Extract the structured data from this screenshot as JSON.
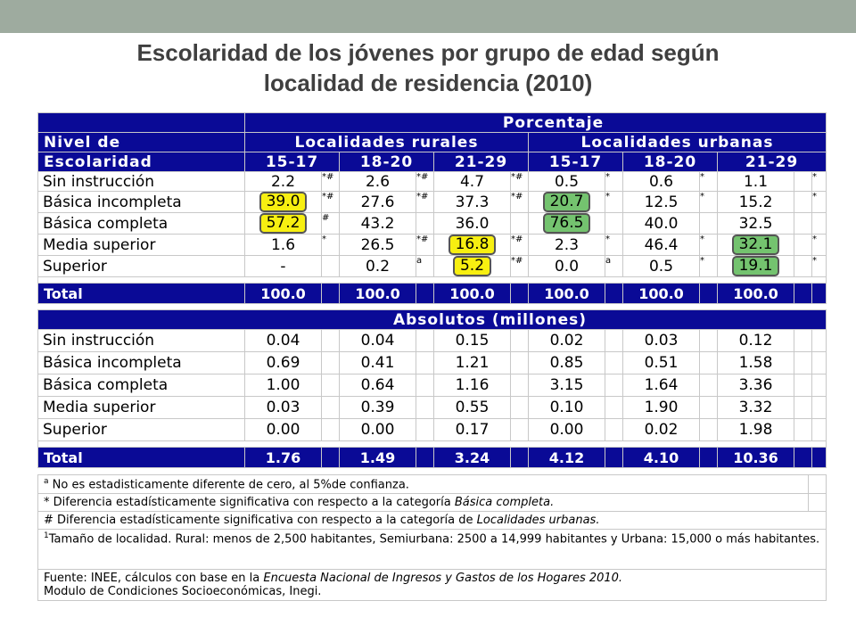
{
  "title": {
    "line1": "Escolaridad de los jóvenes por grupo de edad según",
    "line2": "localidad de residencia  (2010)"
  },
  "header": {
    "porcentaje": "Porcentaje",
    "nivel_de": "Nivel de",
    "escolaridad": "Escolaridad",
    "rurales": "Localidades rurales",
    "urbanas": "Localidades urbanas",
    "ages": [
      "15-17",
      "18-20",
      "21-29",
      "15-17",
      "18-20",
      "21-29"
    ]
  },
  "porcentaje_rows": [
    {
      "label": "Sin instrucción",
      "cells": [
        {
          "v": "2.2",
          "m": "*#"
        },
        {
          "v": "2.6",
          "m": "*#"
        },
        {
          "v": "4.7",
          "m": "*#"
        },
        {
          "v": "0.5",
          "m": "*"
        },
        {
          "v": "0.6",
          "m": "*"
        },
        {
          "v": "1.1",
          "m": "*"
        }
      ]
    },
    {
      "label": "Básica incompleta",
      "cells": [
        {
          "v": "39.0",
          "m": "*#"
        },
        {
          "v": "27.6",
          "m": "*#"
        },
        {
          "v": "37.3",
          "m": "*#"
        },
        {
          "v": "20.7",
          "m": "*"
        },
        {
          "v": "12.5",
          "m": "*"
        },
        {
          "v": "15.2",
          "m": "*"
        }
      ]
    },
    {
      "label": "Básica completa",
      "cells": [
        {
          "v": "57.2",
          "m": "#"
        },
        {
          "v": "43.2",
          "m": ""
        },
        {
          "v": "36.0",
          "m": ""
        },
        {
          "v": "76.5",
          "m": ""
        },
        {
          "v": "40.0",
          "m": ""
        },
        {
          "v": "32.5",
          "m": ""
        }
      ]
    },
    {
      "label": "Media superior",
      "cells": [
        {
          "v": "1.6",
          "m": "*"
        },
        {
          "v": "26.5",
          "m": "*#"
        },
        {
          "v": "16.8",
          "m": "*#"
        },
        {
          "v": "2.3",
          "m": "*"
        },
        {
          "v": "46.4",
          "m": "*"
        },
        {
          "v": "32.1",
          "m": "*"
        }
      ]
    },
    {
      "label": "Superior",
      "cells": [
        {
          "v": "-",
          "m": ""
        },
        {
          "v": "0.2",
          "m": "a"
        },
        {
          "v": "5.2",
          "m": "*#"
        },
        {
          "v": "0.0",
          "m": "a"
        },
        {
          "v": "0.5",
          "m": "*"
        },
        {
          "v": "19.1",
          "m": "*"
        }
      ]
    }
  ],
  "porcentaje_total": {
    "label": "Total",
    "values": [
      "100.0",
      "100.0",
      "100.0",
      "100.0",
      "100.0",
      "100.0"
    ]
  },
  "absolutos_header": "Absolutos (millones)",
  "absolutos_rows": [
    {
      "label": "Sin instrucción",
      "values": [
        "0.04",
        "0.04",
        "0.15",
        "0.02",
        "0.03",
        "0.12"
      ]
    },
    {
      "label": "Básica incompleta",
      "values": [
        "0.69",
        "0.41",
        "1.21",
        "0.85",
        "0.51",
        "1.58"
      ]
    },
    {
      "label": "Básica completa",
      "values": [
        "1.00",
        "0.64",
        "1.16",
        "3.15",
        "1.64",
        "3.36"
      ]
    },
    {
      "label": "Media superior",
      "values": [
        "0.03",
        "0.39",
        "0.55",
        "0.10",
        "1.90",
        "3.32"
      ]
    },
    {
      "label": "Superior",
      "values": [
        "0.00",
        "0.00",
        "0.17",
        "0.00",
        "0.02",
        "1.98"
      ]
    }
  ],
  "absolutos_total": {
    "label": "Total",
    "values": [
      "1.76",
      "1.49",
      "3.24",
      "4.12",
      "4.10",
      "10.36"
    ]
  },
  "highlights": {
    "yellow": [
      "p.1.0",
      "p.2.0",
      "p.3.2",
      "p.4.2"
    ],
    "green": [
      "p.1.3",
      "p.2.3",
      "p.3.5",
      "p.4.5"
    ],
    "colors": {
      "yellow": "#f7ef11",
      "green": "#74c36f",
      "header_blue": "#0a0a96",
      "topbar": "#9eab9f"
    }
  },
  "notes": {
    "a_mark": "a",
    "a_text": " No es estadisticamente diferente de cero, al 5%de confianza.",
    "star_text": "* Diferencia estadísticamente significativa con respecto a la categoría ",
    "star_em": "Básica completa.",
    "hash_text": "# Diferencia estadísticamente significativa con respecto a la categoría de ",
    "hash_em": "Localidades urbanas.",
    "size_mark": "1",
    "size_text": "Tamaño de localidad. Rural: menos de 2,500 habitantes, Semiurbana: 2500 a 14,999 habitantes y Urbana: 15,000 o más habitantes.",
    "source_text": "Fuente: INEE, cálculos con base en la ",
    "source_em": "Encuesta Nacional de Ingresos y Gastos de los Hogares 2010.",
    "source_text2": "Modulo de Condiciones Socioeconómicas, Inegi."
  }
}
